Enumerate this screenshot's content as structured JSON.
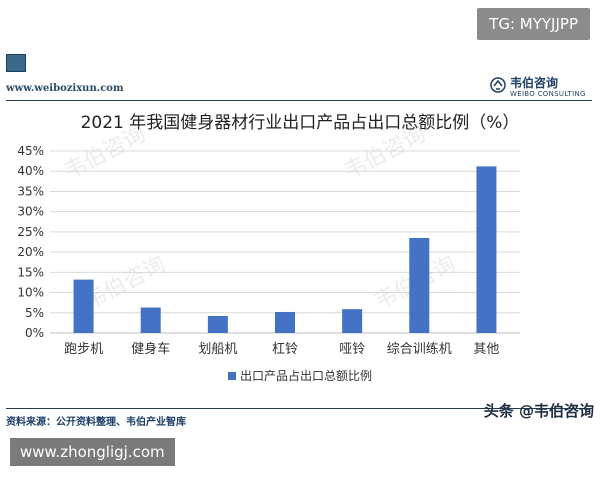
{
  "badge": "TG: MYYJJPP",
  "site_url": "www.weibozixun.com",
  "logo": {
    "cn": "韦伯咨询",
    "en": "WEIBO CONSULTING"
  },
  "source": "资料来源：公开资料整理、韦伯产业智库",
  "corner_watermark": "头条 @韦伯咨询",
  "footer_url": "www.zhongligj.com",
  "colors": {
    "bar": "#4472C4",
    "axis": "#bfbfbf",
    "grid": "#d9d9d9",
    "rule": "#243a55"
  },
  "chart_data": {
    "type": "bar",
    "title": "2021 年我国健身器材行业出口产品占出口总额比例（%）",
    "categories": [
      "跑步机",
      "健身车",
      "划船机",
      "杠铃",
      "哑铃",
      "综合训练机",
      "其他"
    ],
    "series": [
      {
        "name": "出口产品占出口总额比例",
        "values": [
          13.2,
          6.3,
          4.2,
          5.2,
          5.9,
          23.5,
          41.2
        ]
      }
    ],
    "ylim": [
      0,
      45
    ],
    "yticks": [
      "0%",
      "5%",
      "10%",
      "15%",
      "20%",
      "25%",
      "30%",
      "35%",
      "40%",
      "45%"
    ],
    "grid": true,
    "legend": "bottom"
  }
}
